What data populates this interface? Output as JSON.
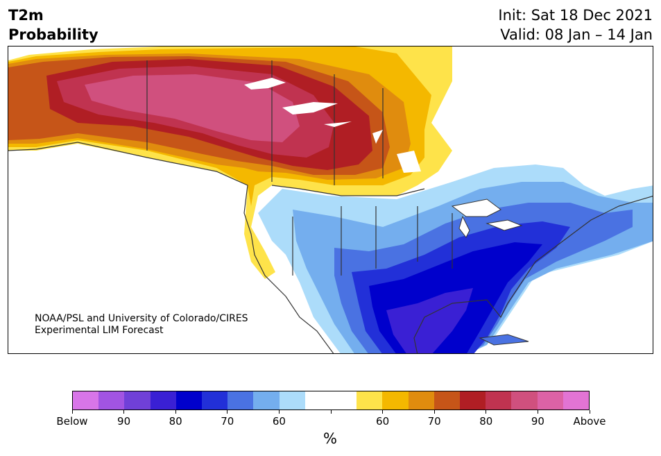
{
  "header": {
    "title_line1": "T2m",
    "title_line2": "Probability",
    "init": "Init: Sat 18 Dec 2021",
    "valid": "Valid: 08 Jan – 14 Jan"
  },
  "credit": {
    "line1": "NOAA/PSL and University of Colorado/CIRES",
    "line2": "Experimental LIM Forecast"
  },
  "colorbar": {
    "colors": [
      "#d875e8",
      "#a254e2",
      "#7040d8",
      "#3a20d4",
      "#0000cc",
      "#2230d8",
      "#4a72e2",
      "#74aeee",
      "#acdcfa",
      "#ffffff",
      "#ffffff",
      "#fee34a",
      "#f4b800",
      "#e08c0e",
      "#c65518",
      "#b01e24",
      "#c03350",
      "#d0507e",
      "#dc62a6",
      "#e274d4"
    ],
    "labels": [
      "Below",
      "90",
      "80",
      "70",
      "60",
      "",
      "60",
      "70",
      "80",
      "90",
      "Above"
    ],
    "unit": "%"
  },
  "map": {
    "below_colors": {
      "p50": "#acdcfa",
      "p60": "#74aeee",
      "p70": "#4a72e2",
      "p80": "#2230d8",
      "p90": "#0000cc",
      "p95": "#3a20d4"
    },
    "above_colors": {
      "p50": "#fee34a",
      "p60": "#f4b800",
      "p70": "#e08c0e",
      "p80": "#c65518",
      "p85": "#b01e24",
      "p90": "#c03350",
      "p95": "#d0507e"
    }
  }
}
